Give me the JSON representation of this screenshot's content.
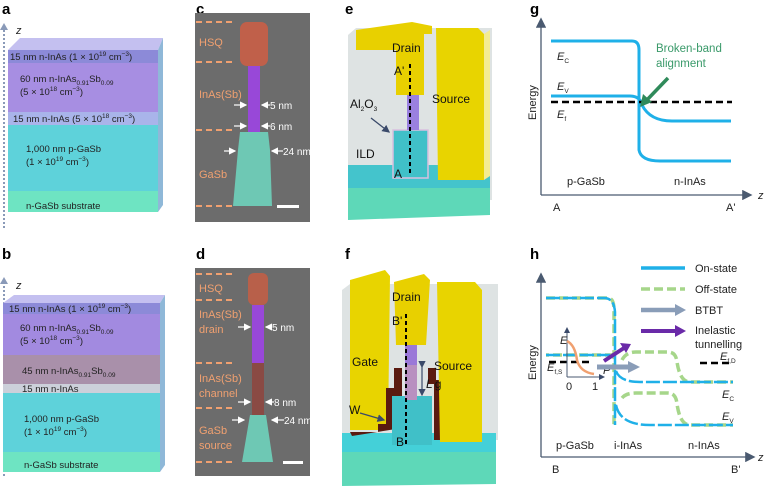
{
  "panels": {
    "a": "a",
    "b": "b",
    "c": "c",
    "d": "d",
    "e": "e",
    "f": "f",
    "g": "g",
    "h": "h"
  },
  "z_label": "z",
  "panel_a": {
    "l1": [
      "15 nm n-InAs (1 × 10",
      "19",
      " cm",
      "−3",
      ")"
    ],
    "l2a": [
      "60 nm n-InAs",
      "0.91",
      "Sb",
      "0.09"
    ],
    "l2b": [
      "(5 × 10",
      "18",
      " cm",
      "−3",
      ")"
    ],
    "l3": [
      "15 nm n-InAs (5 × 10",
      "18",
      " cm",
      "−3",
      ")"
    ],
    "l4a": "1,000 nm p-GaSb",
    "l4b": [
      "(1 × 10",
      "19",
      " cm",
      "−3",
      ")"
    ],
    "l5": "n-GaSb substrate"
  },
  "panel_b": {
    "l1": [
      "15 nm n-InAs (1 × 10",
      "19",
      " cm",
      "−3",
      ")"
    ],
    "l2a": [
      "60 nm n-InAs",
      "0.91",
      "Sb",
      "0.09"
    ],
    "l2b": [
      "(5 × 10",
      "18",
      " cm",
      "−3",
      ")"
    ],
    "l3": [
      "45 nm n-InAs",
      "0.91",
      "Sb",
      "0.09"
    ],
    "l4": "15 nm n-InAs",
    "l5a": "1,000 nm p-GaSb",
    "l5b": [
      "(1 × 10",
      "19",
      " cm",
      "−3",
      ")"
    ],
    "l6": "n-GaSb substrate"
  },
  "panel_c": {
    "hsq": "HSQ",
    "inas": "InAs(Sb)",
    "gasb": "GaSb",
    "d1": "5 nm",
    "d2": "6 nm",
    "d3": "24 nm"
  },
  "panel_d": {
    "hsq": "HSQ",
    "drain1": "InAs(Sb)",
    "drain2": "drain",
    "chan1": "InAs(Sb)",
    "chan2": "channel",
    "src1": "GaSb",
    "src2": "source",
    "d1": "5 nm",
    "d2": "8 nm",
    "d3": "24 nm"
  },
  "panel_e": {
    "drain": "Drain",
    "source": "Source",
    "a_prime": "A'",
    "a": "A",
    "al2o3": [
      "Al",
      "2",
      "O",
      "3"
    ],
    "ild": "ILD"
  },
  "panel_f": {
    "drain": "Drain",
    "source": "Source",
    "gate": "Gate",
    "b_prime": "B'",
    "b": "B",
    "w": "W",
    "lg": [
      "L",
      "g"
    ]
  },
  "panel_g": {
    "ylabel": "Energy",
    "xaxis": "z",
    "ec": [
      "E",
      "C"
    ],
    "ev": [
      "E",
      "V"
    ],
    "ef": [
      "E",
      "f"
    ],
    "annotation": [
      "Broken-band",
      "alignment"
    ],
    "region_left": "p-GaSb",
    "region_right": "n-InAs",
    "start": "A",
    "end": "A'",
    "colors": {
      "band": "#1fb0e8",
      "fermi": "#000000",
      "annotation": "#2f8a5a"
    }
  },
  "panel_h": {
    "ylabel": "Energy",
    "xaxis": "z",
    "legend": [
      {
        "label": "On-state",
        "color": "#1fb0e8"
      },
      {
        "label": "Off-state",
        "color": "#a6d68a"
      },
      {
        "label": "BTBT",
        "color": "#8a9db8"
      },
      {
        "label": "Inelastic",
        "label2": "tunnelling",
        "color": "#6a2aa8"
      }
    ],
    "efs": [
      "E",
      "f,S"
    ],
    "efd": [
      "E",
      "f,D"
    ],
    "ec": [
      "E",
      "C"
    ],
    "ev": [
      "E",
      "V"
    ],
    "inset": {
      "e": "E",
      "p": "P",
      "zero": "0",
      "one": "1"
    },
    "regions": [
      "p-GaSb",
      "i-InAs",
      "n-InAs"
    ],
    "start": "B",
    "end": "B'"
  }
}
